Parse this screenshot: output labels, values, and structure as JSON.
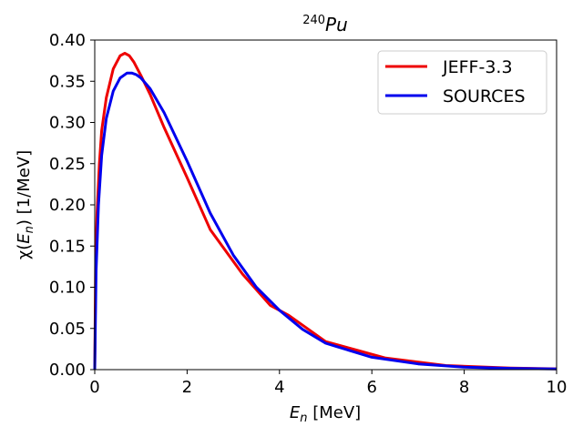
{
  "chart_data": {
    "type": "line",
    "title_sup": "240",
    "title_main": "Pu",
    "xlabel_sym": "E",
    "xlabel_sub": "n",
    "xlabel_unit": " [MeV]",
    "ylabel_pre": "χ(",
    "ylabel_sym": "E",
    "ylabel_sub": "n",
    "ylabel_post": ") [1/MeV]",
    "xlim": [
      0,
      10
    ],
    "ylim": [
      0,
      0.4
    ],
    "xticks": [
      0,
      2,
      4,
      6,
      8,
      10
    ],
    "xtick_labels": [
      "0",
      "2",
      "4",
      "6",
      "8",
      "10"
    ],
    "yticks": [
      0,
      0.05,
      0.1,
      0.15,
      0.2,
      0.25,
      0.3,
      0.35,
      0.4
    ],
    "ytick_labels": [
      "0.00",
      "0.05",
      "0.10",
      "0.15",
      "0.20",
      "0.25",
      "0.30",
      "0.35",
      "0.40"
    ],
    "grid": false,
    "legend_position": "top-right",
    "series": [
      {
        "name": "JEFF-3.3",
        "color": "#ee0000",
        "x": [
          0,
          0.02,
          0.05,
          0.1,
          0.15,
          0.25,
          0.4,
          0.55,
          0.65,
          0.75,
          0.85,
          1.0,
          1.2,
          1.5,
          2.0,
          2.5,
          3.2,
          3.8,
          4.2,
          5.0,
          6.3,
          7.6,
          9.0,
          10.0
        ],
        "y": [
          0,
          0.13,
          0.19,
          0.25,
          0.29,
          0.33,
          0.365,
          0.381,
          0.384,
          0.381,
          0.373,
          0.357,
          0.334,
          0.294,
          0.233,
          0.17,
          0.116,
          0.078,
          0.066,
          0.034,
          0.014,
          0.005,
          0.002,
          0.001
        ]
      },
      {
        "name": "SOURCES",
        "color": "#0000ee",
        "x": [
          0,
          0.03,
          0.08,
          0.15,
          0.25,
          0.4,
          0.55,
          0.7,
          0.8,
          0.9,
          1.0,
          1.2,
          1.5,
          2.0,
          2.5,
          3.0,
          3.5,
          4.0,
          4.5,
          5.0,
          6.0,
          7.0,
          8.0,
          9.0,
          10.0
        ],
        "y": [
          0,
          0.12,
          0.2,
          0.26,
          0.305,
          0.338,
          0.354,
          0.36,
          0.36,
          0.358,
          0.354,
          0.341,
          0.312,
          0.253,
          0.19,
          0.139,
          0.1,
          0.072,
          0.049,
          0.032,
          0.015,
          0.007,
          0.003,
          0.0015,
          0.0008
        ]
      }
    ]
  }
}
